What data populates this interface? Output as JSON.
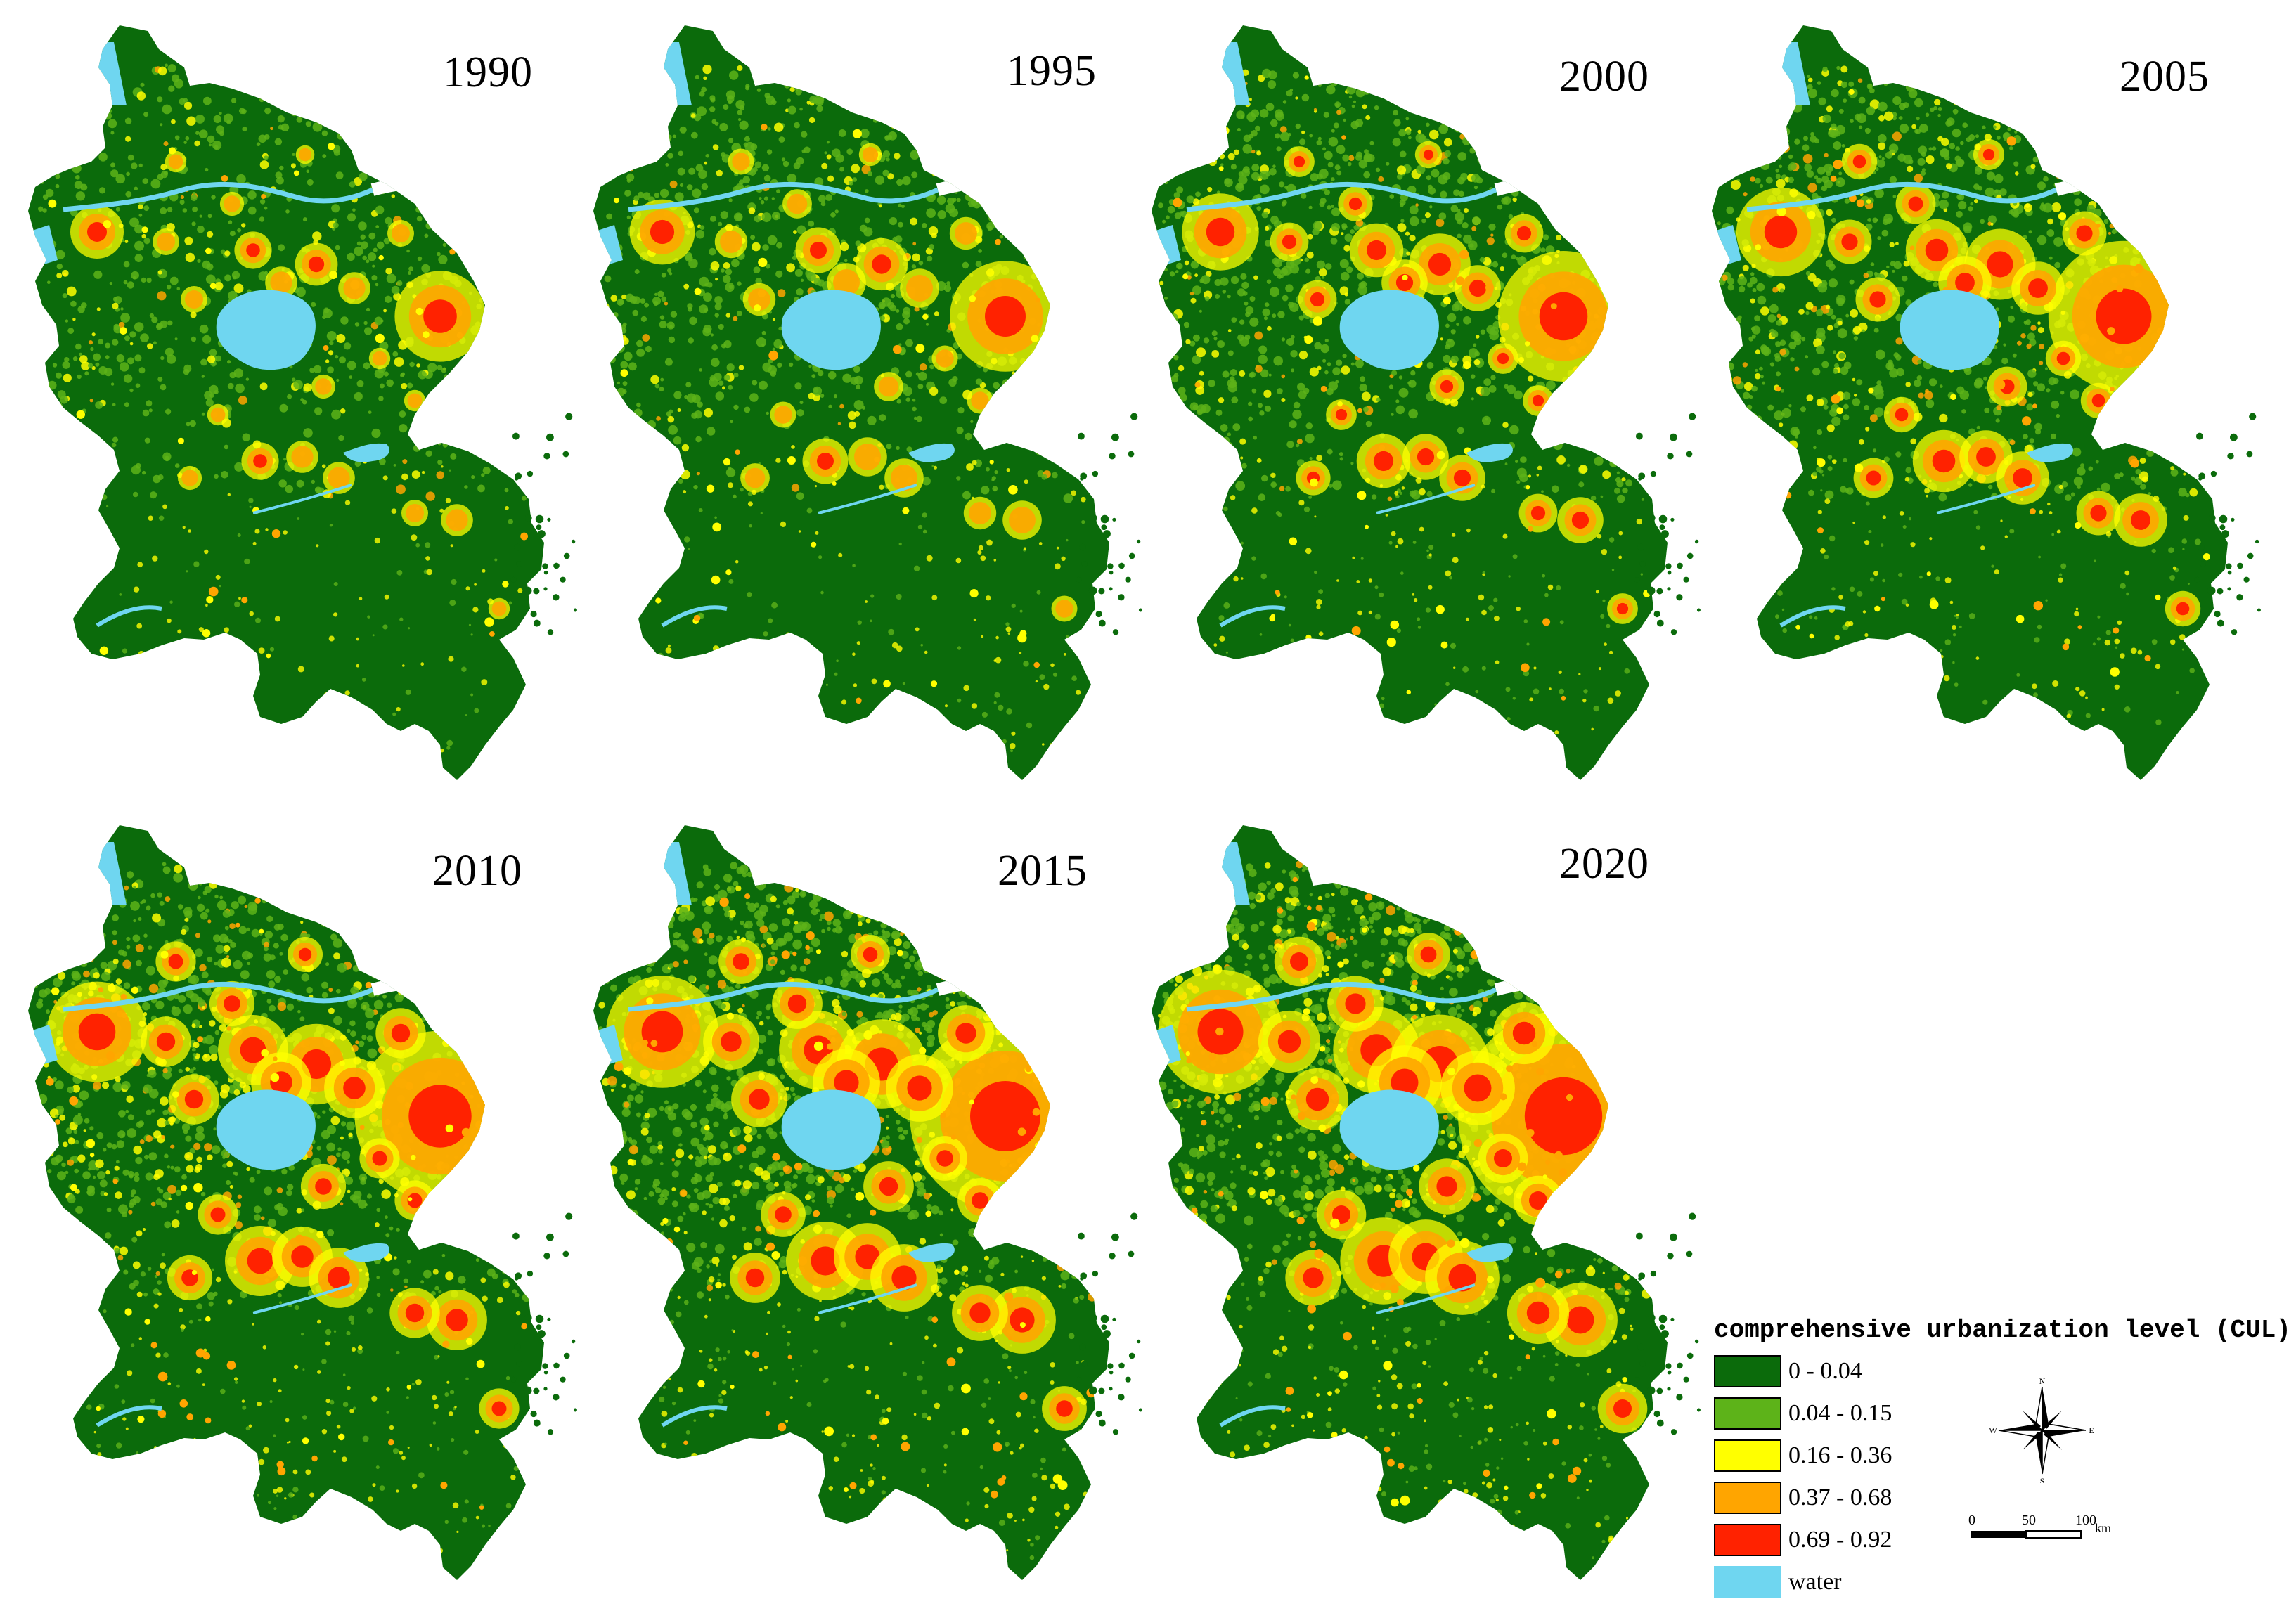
{
  "panels": [
    {
      "year": "1990",
      "level": 0
    },
    {
      "year": "1995",
      "level": 1
    },
    {
      "year": "2000",
      "level": 2
    },
    {
      "year": "2005",
      "level": 3
    },
    {
      "year": "2010",
      "level": 4
    },
    {
      "year": "2015",
      "level": 5
    },
    {
      "year": "2020",
      "level": 6
    }
  ],
  "legend": {
    "title": "comprehensive urbanization level (CUL)",
    "items": [
      {
        "label": "0 - 0.04",
        "color": "#0b6b0b"
      },
      {
        "label": "0.04 - 0.15",
        "color": "#5db319"
      },
      {
        "label": "0.16 - 0.36",
        "color": "#ffff00"
      },
      {
        "label": "0.37 - 0.68",
        "color": "#ffa500"
      },
      {
        "label": "0.69 - 0.92",
        "color": "#ff2200"
      },
      {
        "label": "water",
        "color": "#6fd6f0"
      }
    ]
  },
  "compass": {
    "n": "N",
    "s": "S",
    "e": "E",
    "w": "W"
  },
  "scale": {
    "ticks": [
      "0",
      "50",
      "100"
    ],
    "unit": "km"
  },
  "colors": {
    "land": "#0b6b0b",
    "mid": "#5db319",
    "yellow": "#ffff00",
    "orange": "#ffa500",
    "red": "#ff2200",
    "water": "#6fd6f0"
  }
}
